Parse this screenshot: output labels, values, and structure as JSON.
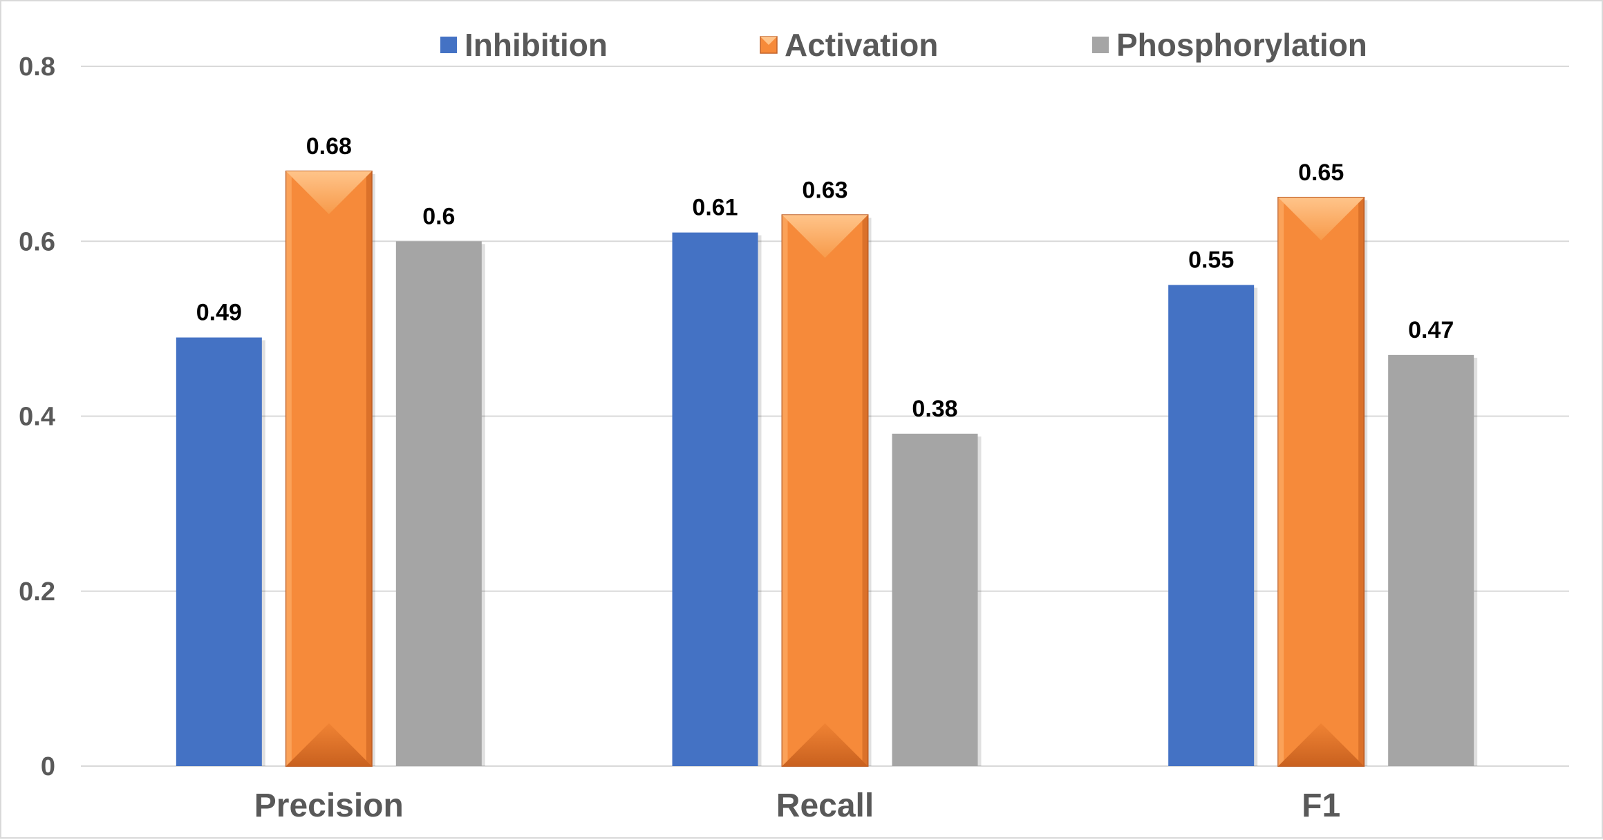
{
  "chart_data": {
    "type": "bar",
    "categories": [
      "Precision",
      "Recall",
      "F1"
    ],
    "series": [
      {
        "name": "Inhibition",
        "values": [
          0.49,
          0.61,
          0.55
        ],
        "color": "#4472c4"
      },
      {
        "name": "Activation",
        "values": [
          0.68,
          0.63,
          0.65
        ],
        "color": "#f68a3a"
      },
      {
        "name": "Phosphorylation",
        "values": [
          0.6,
          0.38,
          0.47
        ],
        "color": "#a5a5a5"
      }
    ],
    "data_labels": [
      [
        "0.49",
        "0.68",
        "0.6"
      ],
      [
        "0.61",
        "0.63",
        "0.38"
      ],
      [
        "0.55",
        "0.65",
        "0.47"
      ]
    ],
    "yticks": [
      "0",
      "0.2",
      "0.4",
      "0.6",
      "0.8"
    ],
    "ylim": [
      0,
      0.8
    ],
    "grid": true,
    "legend_position": "top"
  }
}
